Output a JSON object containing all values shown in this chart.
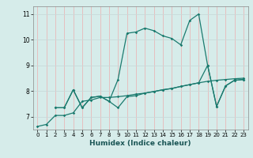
{
  "title": "",
  "xlabel": "Humidex (Indice chaleur)",
  "ylabel": "",
  "bg_color": "#d6ecea",
  "grid_color": "#c8dada",
  "grid_color_v": "#e8b8b8",
  "line_color": "#1a7a6e",
  "xlim": [
    -0.5,
    23.5
  ],
  "ylim": [
    6.5,
    11.3
  ],
  "xticks": [
    0,
    1,
    2,
    3,
    4,
    5,
    6,
    7,
    8,
    9,
    10,
    11,
    12,
    13,
    14,
    15,
    16,
    17,
    18,
    19,
    20,
    21,
    22,
    23
  ],
  "yticks": [
    7,
    8,
    9,
    10,
    11
  ],
  "line1_x": [
    0,
    1,
    2,
    3,
    4,
    5,
    6,
    7,
    8,
    9,
    10,
    11,
    12,
    13,
    14,
    15,
    16,
    17,
    18,
    19,
    20,
    21,
    22,
    23
  ],
  "line1_y": [
    6.62,
    6.7,
    7.05,
    7.05,
    7.15,
    7.6,
    7.65,
    7.75,
    7.75,
    7.78,
    7.82,
    7.88,
    7.92,
    7.98,
    8.05,
    8.1,
    8.18,
    8.25,
    8.32,
    8.38,
    8.42,
    8.45,
    8.48,
    8.5
  ],
  "line2_x": [
    2,
    3,
    4,
    5,
    6,
    7,
    8,
    9,
    10,
    11,
    12,
    13,
    14,
    15,
    16,
    17,
    18,
    19,
    20,
    21,
    22,
    23
  ],
  "line2_y": [
    7.35,
    7.35,
    8.05,
    7.35,
    7.75,
    7.8,
    7.6,
    7.35,
    7.78,
    7.82,
    7.92,
    7.98,
    8.05,
    8.1,
    8.18,
    8.25,
    8.32,
    9.0,
    7.4,
    8.2,
    8.42,
    8.45
  ],
  "line3_x": [
    2,
    3,
    4,
    5,
    6,
    7,
    8,
    9,
    10,
    11,
    12,
    13,
    14,
    15,
    16,
    17,
    18,
    19,
    20,
    21,
    22,
    23
  ],
  "line3_y": [
    7.35,
    7.35,
    8.05,
    7.35,
    7.75,
    7.8,
    7.6,
    8.45,
    10.25,
    10.3,
    10.45,
    10.35,
    10.15,
    10.05,
    9.8,
    10.75,
    11.0,
    9.0,
    7.4,
    8.2,
    8.42,
    8.45
  ],
  "xlabel_fontsize": 6.5,
  "xlabel_color": "#1a5555",
  "tick_fontsize": 5.0
}
